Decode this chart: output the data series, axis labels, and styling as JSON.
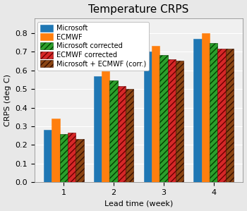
{
  "title": "Temperature CRPS",
  "xlabel": "Lead time (week)",
  "ylabel": "CRPS (deg C)",
  "categories": [
    1,
    2,
    3,
    4
  ],
  "series": {
    "Microsoft": [
      0.28,
      0.57,
      0.7,
      0.77
    ],
    "ECMWF": [
      0.34,
      0.595,
      0.733,
      0.8
    ],
    "Microsoft corrected": [
      0.26,
      0.548,
      0.682,
      0.748
    ],
    "ECMWF corrected": [
      0.265,
      0.515,
      0.66,
      0.718
    ],
    "Microsoft + ECMWF (corr.)": [
      0.232,
      0.502,
      0.653,
      0.715
    ]
  },
  "colors": {
    "Microsoft": "#1f77b4",
    "ECMWF": "#ff7f0e",
    "Microsoft corrected": "#2ca02c",
    "ECMWF corrected": "#d62728",
    "Microsoft + ECMWF (corr.)": "#8B4513"
  },
  "hatch_patterns": {
    "Microsoft": "",
    "ECMWF": "",
    "Microsoft corrected": "////",
    "ECMWF corrected": "////",
    "Microsoft + ECMWF (corr.)": "////"
  },
  "face_colors": {
    "Microsoft": "#1f77b4",
    "ECMWF": "#ff7f0e",
    "Microsoft corrected": "#2ca02c",
    "ECMWF corrected": "#d62728",
    "Microsoft + ECMWF (corr.)": "#8B4513"
  },
  "edge_colors": {
    "Microsoft": "#1f77b4",
    "ECMWF": "#ff7f0e",
    "Microsoft corrected": "#004000",
    "ECMWF corrected": "#6b0000",
    "Microsoft + ECMWF (corr.)": "#3a1000"
  },
  "ylim": [
    0.0,
    0.88
  ],
  "yticks": [
    0.0,
    0.1,
    0.2,
    0.3,
    0.4,
    0.5,
    0.6,
    0.7,
    0.8
  ],
  "bar_width": 0.16,
  "background_color": "#e8e8e8",
  "plot_area_color": "#f0f0f0",
  "title_fontsize": 11,
  "axis_fontsize": 8,
  "tick_fontsize": 8,
  "legend_fontsize": 7
}
